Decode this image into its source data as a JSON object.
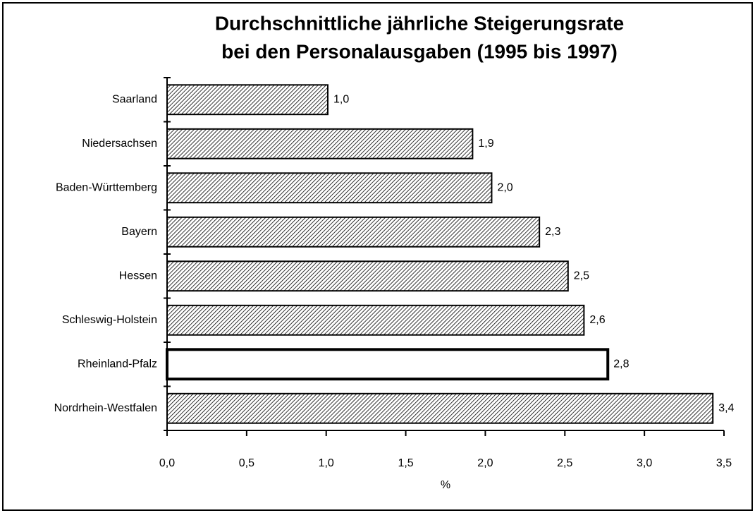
{
  "chart_data": {
    "type": "hbar",
    "title": [
      "Durchschnittliche jährliche Steigerungsrate",
      "bei den Personalausgaben (1995 bis 1997)"
    ],
    "categories": [
      "Saarland",
      "Niedersachsen",
      "Baden-Württemberg",
      "Bayern",
      "Hessen",
      "Schleswig-Holstein",
      "Rheinland-Pfalz",
      "Nordrhein-Westfalen"
    ],
    "values": [
      1.01,
      1.92,
      2.04,
      2.34,
      2.52,
      2.62,
      2.77,
      3.43
    ],
    "value_labels": [
      "1,0",
      "1,9",
      "2,0",
      "2,3",
      "2,5",
      "2,6",
      "2,8",
      "3,4"
    ],
    "fill": "hatch",
    "highlight_index": 6,
    "highlight_color": "#ffffff",
    "xlabel": "%",
    "xlim": [
      0,
      3.5
    ],
    "xticks": [
      {
        "value": 0,
        "label": "0,0"
      },
      {
        "value": 0.5,
        "label": "0,5"
      },
      {
        "value": 1,
        "label": "1,0"
      },
      {
        "value": 1.5,
        "label": "1,5"
      },
      {
        "value": 2,
        "label": "2,0"
      },
      {
        "value": 2.5,
        "label": "2,5"
      },
      {
        "value": 3,
        "label": "3,0"
      },
      {
        "value": 3.5,
        "label": "3,5"
      }
    ],
    "grid": false
  }
}
